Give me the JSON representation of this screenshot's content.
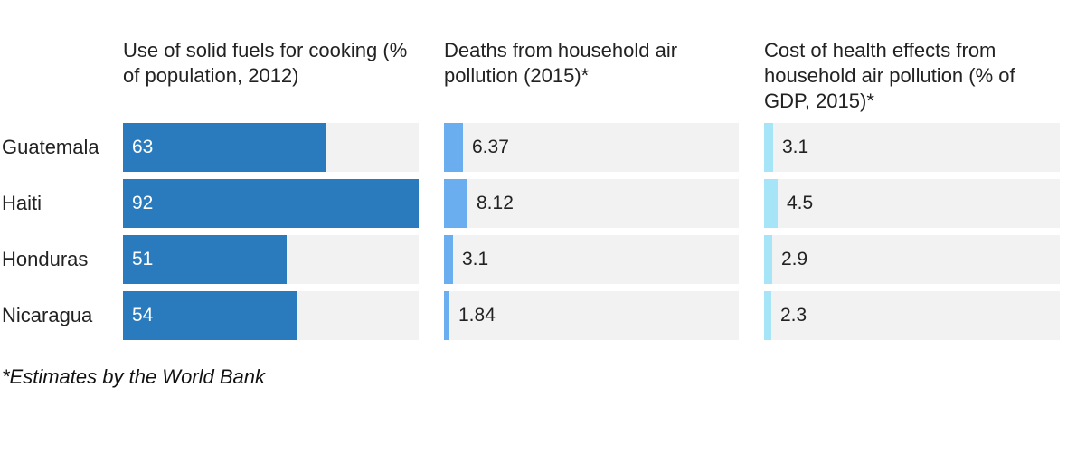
{
  "chart_data": [
    {
      "type": "bar",
      "title": "Use of solid fuels for cooking (% of population, 2012)",
      "categories": [
        "Guatemala",
        "Haiti",
        "Honduras",
        "Nicaragua"
      ],
      "values": [
        63,
        92,
        51,
        54
      ],
      "value_labels": [
        "63",
        "92",
        "51",
        "54"
      ],
      "xlim": [
        0,
        92
      ],
      "color": "#2a7bbd"
    },
    {
      "type": "bar",
      "title": "Deaths from household air pollution (2015)*",
      "categories": [
        "Guatemala",
        "Haiti",
        "Honduras",
        "Nicaragua"
      ],
      "values": [
        6.37,
        8.12,
        3.1,
        1.84
      ],
      "value_labels": [
        "6.37",
        "8.12",
        "3.1",
        "1.84"
      ],
      "xlim": [
        0,
        100
      ],
      "color": "#6aaef0"
    },
    {
      "type": "bar",
      "title": "Cost of health effects from household air pollution (% of GDP, 2015)*",
      "categories": [
        "Guatemala",
        "Haiti",
        "Honduras",
        "Nicaragua"
      ],
      "values": [
        3.1,
        4.5,
        2.9,
        2.3
      ],
      "value_labels": [
        "3.1",
        "4.5",
        "2.9",
        "2.3"
      ],
      "xlim": [
        0,
        100
      ],
      "color": "#a6e4f7"
    }
  ],
  "footnote": "*Estimates by the World Bank"
}
